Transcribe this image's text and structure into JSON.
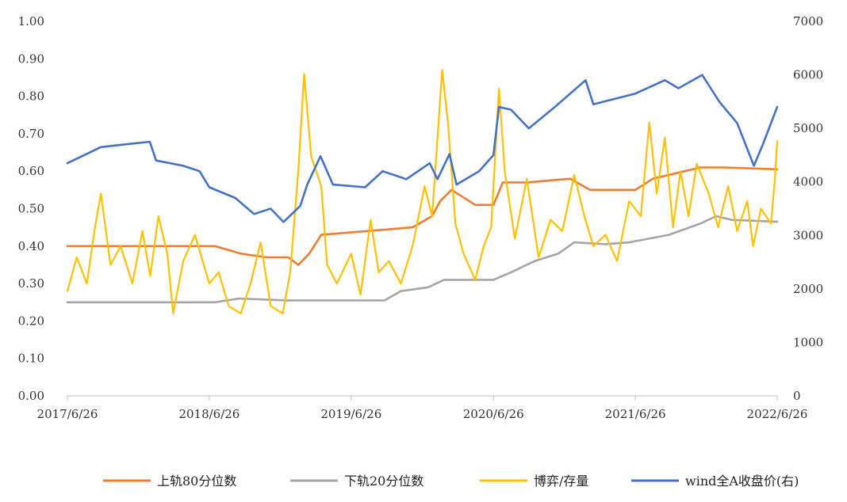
{
  "chart_data": {
    "type": "line",
    "title": "",
    "grid": false,
    "legend_position": "bottom",
    "x_ticks": [
      "2017/6/26",
      "2018/6/26",
      "2019/6/26",
      "2020/6/26",
      "2021/6/26",
      "2022/6/26"
    ],
    "y_left": {
      "min": 0,
      "max": 1,
      "ticks": [
        "0.00",
        "0.10",
        "0.20",
        "0.30",
        "0.40",
        "0.50",
        "0.60",
        "0.70",
        "0.80",
        "0.90",
        "1.00"
      ]
    },
    "y_right": {
      "min": 0,
      "max": 7000,
      "ticks": [
        "0",
        "1000",
        "2000",
        "3000",
        "4000",
        "5000",
        "6000",
        "7000"
      ]
    },
    "colors": {
      "upper": "#ED7D31",
      "lower": "#A5A5A5",
      "ratio": "#FFC000",
      "index": "#4472C4",
      "axis": "#BFBFBF"
    },
    "series": [
      {
        "name": "上轨80分位数",
        "axis": "left",
        "points": [
          [
            "2017/6/26",
            0.4
          ],
          [
            "2018/7/10",
            0.4
          ],
          [
            "2018/9/15",
            0.38
          ],
          [
            "2018/11/20",
            0.37
          ],
          [
            "2019/1/15",
            0.37
          ],
          [
            "2019/2/10",
            0.35
          ],
          [
            "2019/3/10",
            0.38
          ],
          [
            "2019/4/10",
            0.43
          ],
          [
            "2019/12/1",
            0.45
          ],
          [
            "2020/1/20",
            0.48
          ],
          [
            "2020/2/10",
            0.52
          ],
          [
            "2020/3/10",
            0.55
          ],
          [
            "2020/4/10",
            0.53
          ],
          [
            "2020/5/10",
            0.51
          ],
          [
            "2020/6/26",
            0.51
          ],
          [
            "2020/7/20",
            0.57
          ],
          [
            "2020/9/20",
            0.57
          ],
          [
            "2021/1/10",
            0.58
          ],
          [
            "2021/3/1",
            0.55
          ],
          [
            "2021/6/26",
            0.55
          ],
          [
            "2021/8/10",
            0.58
          ],
          [
            "2021/12/10",
            0.61
          ],
          [
            "2022/1/10",
            0.61
          ],
          [
            "2022/2/10",
            0.61
          ],
          [
            "2022/6/26",
            0.605
          ]
        ]
      },
      {
        "name": "下轨20分位数",
        "axis": "left",
        "points": [
          [
            "2017/6/26",
            0.25
          ],
          [
            "2018/7/10",
            0.25
          ],
          [
            "2018/9/10",
            0.26
          ],
          [
            "2019/1/10",
            0.255
          ],
          [
            "2019/9/20",
            0.255
          ],
          [
            "2019/11/1",
            0.28
          ],
          [
            "2020/1/10",
            0.29
          ],
          [
            "2020/2/20",
            0.31
          ],
          [
            "2020/6/26",
            0.31
          ],
          [
            "2020/8/10",
            0.33
          ],
          [
            "2020/10/10",
            0.36
          ],
          [
            "2020/12/10",
            0.38
          ],
          [
            "2021/1/20",
            0.41
          ],
          [
            "2021/4/10",
            0.405
          ],
          [
            "2021/6/10",
            0.41
          ],
          [
            "2021/9/20",
            0.43
          ],
          [
            "2021/12/10",
            0.46
          ],
          [
            "2022/1/20",
            0.48
          ],
          [
            "2022/3/1",
            0.47
          ],
          [
            "2022/6/26",
            0.465
          ]
        ]
      },
      {
        "name": "博弈/存量",
        "axis": "left",
        "points": [
          [
            "2017/6/26",
            0.28
          ],
          [
            "2017/7/20",
            0.37
          ],
          [
            "2017/8/15",
            0.3
          ],
          [
            "2017/9/5",
            0.45
          ],
          [
            "2017/9/20",
            0.54
          ],
          [
            "2017/10/15",
            0.35
          ],
          [
            "2017/11/10",
            0.4
          ],
          [
            "2017/12/10",
            0.3
          ],
          [
            "2018/1/5",
            0.44
          ],
          [
            "2018/1/25",
            0.32
          ],
          [
            "2018/2/15",
            0.48
          ],
          [
            "2018/3/10",
            0.38
          ],
          [
            "2018/3/25",
            0.22
          ],
          [
            "2018/4/20",
            0.36
          ],
          [
            "2018/5/20",
            0.43
          ],
          [
            "2018/6/26",
            0.3
          ],
          [
            "2018/7/20",
            0.33
          ],
          [
            "2018/8/15",
            0.24
          ],
          [
            "2018/9/15",
            0.22
          ],
          [
            "2018/10/10",
            0.3
          ],
          [
            "2018/11/5",
            0.41
          ],
          [
            "2018/12/1",
            0.24
          ],
          [
            "2019/1/1",
            0.22
          ],
          [
            "2019/1/20",
            0.33
          ],
          [
            "2019/2/10",
            0.6
          ],
          [
            "2019/2/25",
            0.86
          ],
          [
            "2019/3/15",
            0.64
          ],
          [
            "2019/4/10",
            0.56
          ],
          [
            "2019/4/25",
            0.35
          ],
          [
            "2019/5/20",
            0.3
          ],
          [
            "2019/6/26",
            0.38
          ],
          [
            "2019/7/20",
            0.27
          ],
          [
            "2019/8/15",
            0.47
          ],
          [
            "2019/9/5",
            0.33
          ],
          [
            "2019/10/1",
            0.36
          ],
          [
            "2019/11/1",
            0.3
          ],
          [
            "2019/12/1",
            0.4
          ],
          [
            "2020/1/1",
            0.56
          ],
          [
            "2020/1/20",
            0.48
          ],
          [
            "2020/2/15",
            0.87
          ],
          [
            "2020/3/1",
            0.73
          ],
          [
            "2020/3/20",
            0.46
          ],
          [
            "2020/4/10",
            0.38
          ],
          [
            "2020/5/10",
            0.31
          ],
          [
            "2020/6/1",
            0.4
          ],
          [
            "2020/6/20",
            0.45
          ],
          [
            "2020/7/10",
            0.82
          ],
          [
            "2020/7/25",
            0.6
          ],
          [
            "2020/8/20",
            0.42
          ],
          [
            "2020/9/20",
            0.58
          ],
          [
            "2020/10/20",
            0.37
          ],
          [
            "2020/11/20",
            0.47
          ],
          [
            "2020/12/20",
            0.44
          ],
          [
            "2021/1/20",
            0.59
          ],
          [
            "2021/2/15",
            0.48
          ],
          [
            "2021/3/10",
            0.4
          ],
          [
            "2021/4/10",
            0.43
          ],
          [
            "2021/5/10",
            0.36
          ],
          [
            "2021/6/10",
            0.52
          ],
          [
            "2021/7/10",
            0.48
          ],
          [
            "2021/8/1",
            0.73
          ],
          [
            "2021/8/20",
            0.54
          ],
          [
            "2021/9/10",
            0.69
          ],
          [
            "2021/10/1",
            0.45
          ],
          [
            "2021/10/20",
            0.6
          ],
          [
            "2021/11/10",
            0.48
          ],
          [
            "2021/12/1",
            0.62
          ],
          [
            "2022/1/1",
            0.54
          ],
          [
            "2022/1/25",
            0.45
          ],
          [
            "2022/2/20",
            0.56
          ],
          [
            "2022/3/15",
            0.44
          ],
          [
            "2022/4/10",
            0.52
          ],
          [
            "2022/4/25",
            0.4
          ],
          [
            "2022/5/15",
            0.5
          ],
          [
            "2022/6/10",
            0.46
          ],
          [
            "2022/6/20",
            0.58
          ],
          [
            "2022/6/26",
            0.68
          ]
        ]
      },
      {
        "name": "wind全A收盘价(右)",
        "axis": "right",
        "points": [
          [
            "2017/6/26",
            4350
          ],
          [
            "2017/9/20",
            4650
          ],
          [
            "2017/11/20",
            4700
          ],
          [
            "2018/1/24",
            4750
          ],
          [
            "2018/2/9",
            4400
          ],
          [
            "2018/4/20",
            4300
          ],
          [
            "2018/6/1",
            4200
          ],
          [
            "2018/6/26",
            3900
          ],
          [
            "2018/9/1",
            3700
          ],
          [
            "2018/10/19",
            3400
          ],
          [
            "2018/12/1",
            3500
          ],
          [
            "2019/1/3",
            3250
          ],
          [
            "2019/2/15",
            3550
          ],
          [
            "2019/3/5",
            3950
          ],
          [
            "2019/4/8",
            4480
          ],
          [
            "2019/5/10",
            3950
          ],
          [
            "2019/8/1",
            3900
          ],
          [
            "2019/9/15",
            4200
          ],
          [
            "2019/11/15",
            4050
          ],
          [
            "2020/1/14",
            4350
          ],
          [
            "2020/2/3",
            4050
          ],
          [
            "2020/3/5",
            4520
          ],
          [
            "2020/3/23",
            3950
          ],
          [
            "2020/5/20",
            4200
          ],
          [
            "2020/6/26",
            4500
          ],
          [
            "2020/7/10",
            5400
          ],
          [
            "2020/8/10",
            5350
          ],
          [
            "2020/9/25",
            5000
          ],
          [
            "2020/12/1",
            5400
          ],
          [
            "2021/2/18",
            5900
          ],
          [
            "2021/3/10",
            5450
          ],
          [
            "2021/6/26",
            5650
          ],
          [
            "2021/9/10",
            5900
          ],
          [
            "2021/10/15",
            5750
          ],
          [
            "2021/12/15",
            6000
          ],
          [
            "2022/1/28",
            5500
          ],
          [
            "2022/3/15",
            5100
          ],
          [
            "2022/4/27",
            4300
          ],
          [
            "2022/5/20",
            4700
          ],
          [
            "2022/6/26",
            5400
          ]
        ]
      }
    ]
  }
}
